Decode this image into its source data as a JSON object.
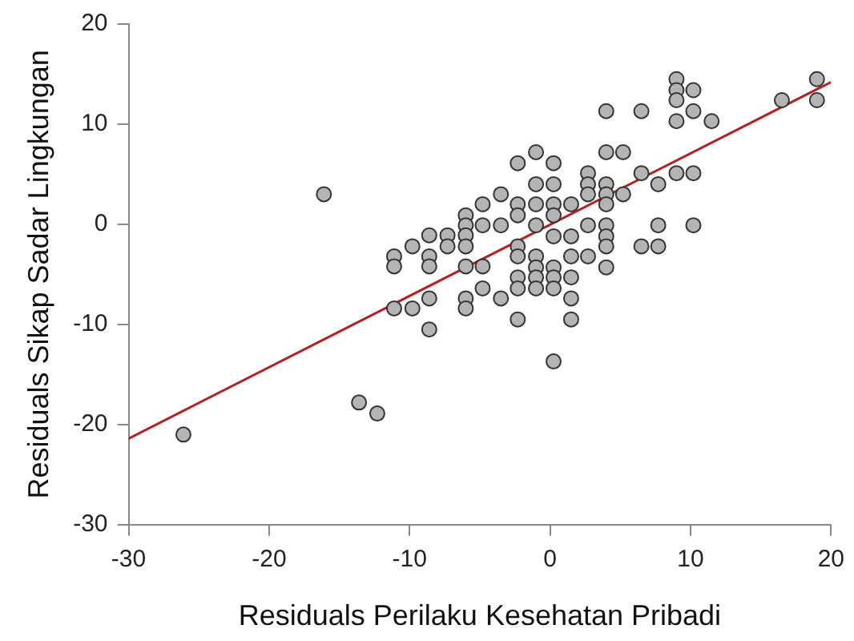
{
  "chart_data": {
    "type": "scatter",
    "xlabel": "Residuals Perilaku Kesehatan Pribadi",
    "ylabel": "Residuals Sikap Sadar Lingkungan",
    "xlim": [
      -30,
      20
    ],
    "xticks": [
      -30,
      -20,
      -10,
      0,
      10,
      20
    ],
    "ylim": [
      -30,
      20
    ],
    "yticks": [
      -30,
      -20,
      -10,
      0,
      10,
      20
    ],
    "grid": false,
    "legend": false,
    "marker": "circle",
    "series": [
      {
        "color": "#b4b4b4",
        "x": [
          -26.1,
          -16.1,
          -13.6,
          -12.3,
          -11.1,
          -11.1,
          -11.1,
          -9.8,
          -9.8,
          -8.6,
          -8.6,
          -8.6,
          -8.6,
          -8.6,
          -7.3,
          -7.3,
          -6.0,
          -6.0,
          -6.0,
          -6.0,
          -6.0,
          -6.0,
          -6.0,
          -4.8,
          -4.8,
          -4.8,
          -4.8,
          -3.5,
          -3.5,
          -3.5,
          -2.3,
          -2.3,
          -2.3,
          -2.3,
          -2.3,
          -2.3,
          -2.3,
          -2.3,
          -1.0,
          -1.0,
          -1.0,
          -1.0,
          -1.0,
          -1.0,
          -1.0,
          -1.0,
          0.25,
          0.25,
          0.25,
          0.25,
          0.25,
          0.25,
          0.25,
          0.25,
          0.25,
          1.5,
          1.5,
          1.5,
          1.5,
          1.5,
          1.5,
          2.7,
          2.7,
          2.7,
          2.7,
          2.7,
          4.0,
          4.0,
          4.0,
          4.0,
          4.0,
          4.0,
          4.0,
          4.0,
          4.0,
          5.2,
          5.2,
          6.5,
          6.5,
          6.5,
          7.7,
          7.7,
          7.7,
          9.0,
          9.0,
          9.0,
          9.0,
          9.0,
          10.2,
          10.2,
          10.2,
          10.2,
          11.5,
          16.5,
          19.0,
          19.0
        ],
        "values": [
          -21.0,
          3.0,
          -17.8,
          -18.9,
          -3.2,
          -4.2,
          -8.4,
          -2.2,
          -8.4,
          -1.1,
          -3.2,
          -4.2,
          -7.4,
          -10.5,
          -1.1,
          -2.2,
          0.9,
          -0.1,
          -1.1,
          -2.2,
          -4.2,
          -7.4,
          -8.4,
          2.0,
          -0.1,
          -4.2,
          -6.4,
          3.0,
          -0.1,
          -7.4,
          6.1,
          2.0,
          0.9,
          -2.2,
          -3.2,
          -5.3,
          -6.4,
          -9.5,
          7.2,
          4.0,
          2.0,
          -0.1,
          -3.2,
          -4.3,
          -5.3,
          -6.4,
          6.1,
          4.0,
          2.0,
          0.9,
          -1.2,
          -4.3,
          -5.3,
          -6.4,
          -13.7,
          2.0,
          -1.2,
          -3.2,
          -5.3,
          -7.4,
          -9.5,
          5.1,
          4.0,
          3.0,
          -0.1,
          -3.2,
          11.3,
          7.2,
          4.0,
          3.0,
          2.0,
          -0.1,
          -1.2,
          -2.2,
          -4.3,
          7.2,
          3.0,
          11.3,
          5.1,
          -2.2,
          4.0,
          -0.1,
          -2.2,
          14.5,
          13.4,
          12.4,
          10.3,
          5.1,
          13.4,
          11.3,
          5.1,
          -0.1,
          10.3,
          12.4,
          14.5,
          12.4
        ]
      },
      {
        "type": "line",
        "color": "#b22222",
        "marker": "none",
        "x": [
          -30,
          20
        ],
        "values": [
          -21.4,
          14.2
        ]
      }
    ]
  }
}
